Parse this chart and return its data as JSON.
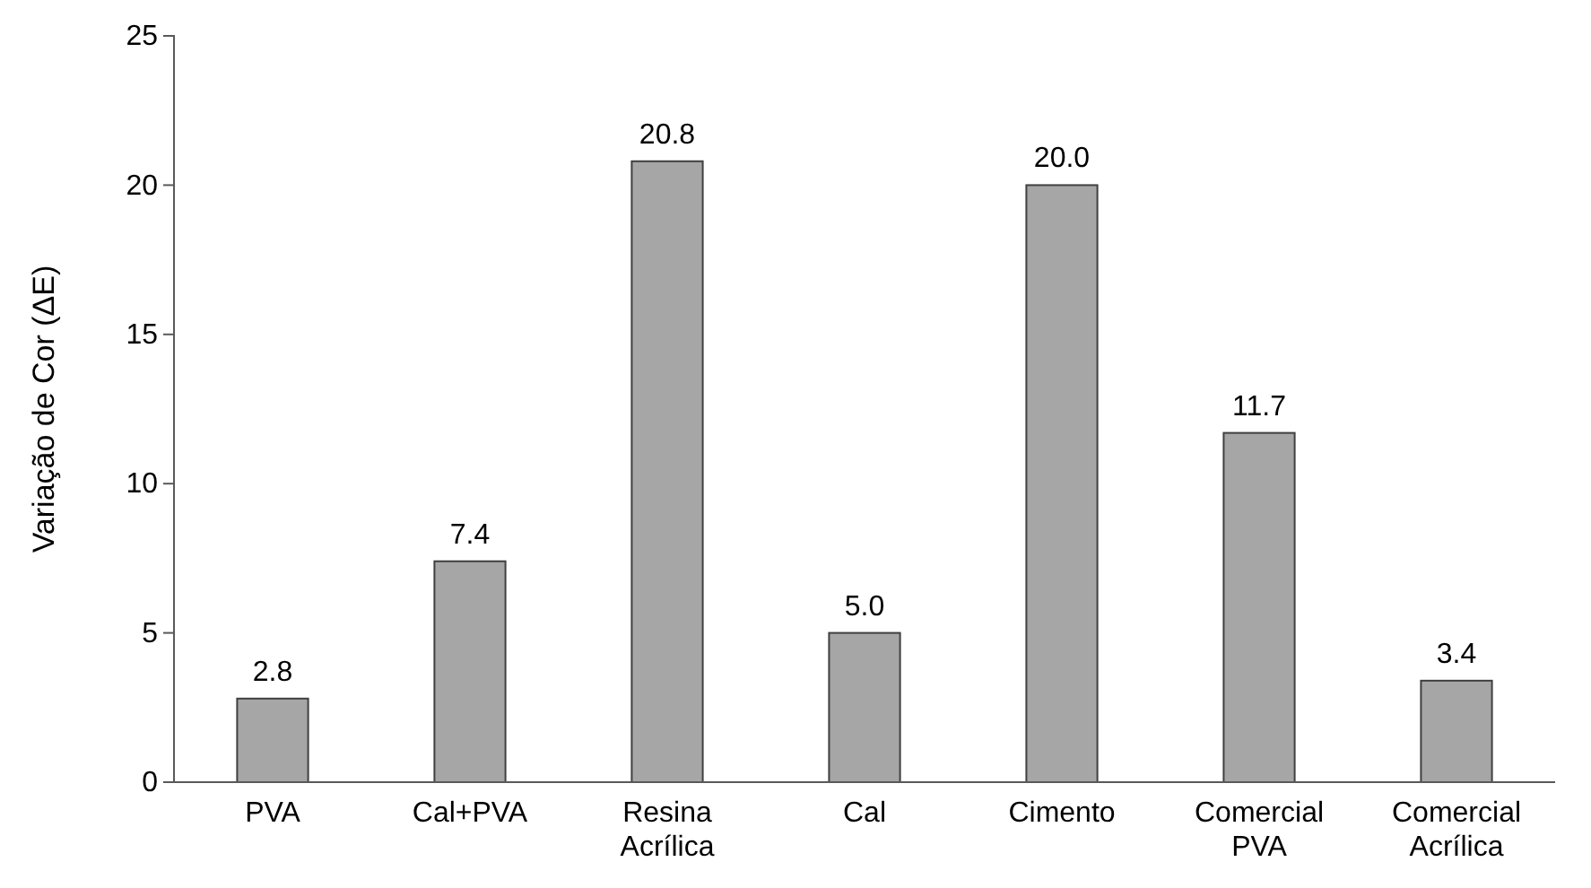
{
  "chart_data": {
    "type": "bar",
    "ylabel": "Variação de Cor (ΔE)",
    "categories": [
      "PVA",
      "Cal+PVA",
      "Resina\nAcrílica",
      "Cal",
      "Cimento",
      "Comercial\nPVA",
      "Comercial\nAcrílica"
    ],
    "values": [
      2.8,
      7.4,
      20.8,
      5.0,
      20.0,
      11.7,
      3.4
    ],
    "color": "#a6a6a6",
    "value_labels": [
      "2.8",
      "7.4",
      "20.8",
      "5.0",
      "20.0",
      "11.7",
      "3.4"
    ],
    "ylim": [
      0,
      25
    ],
    "yticks": [
      0,
      5,
      10,
      15,
      20,
      25
    ],
    "grid": false
  }
}
